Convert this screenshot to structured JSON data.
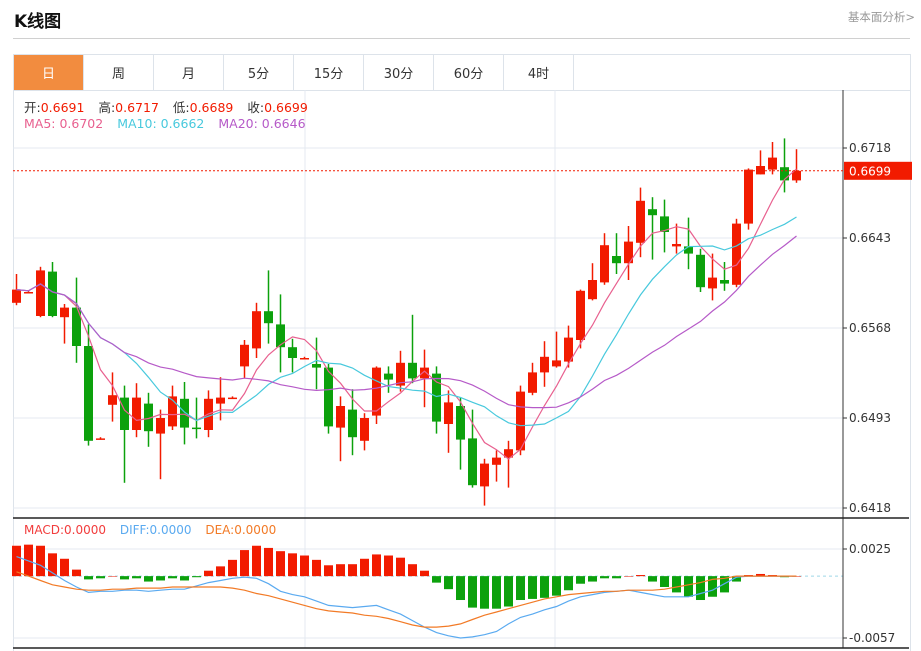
{
  "header": {
    "title": "K线图",
    "more_link": "基本面分析>"
  },
  "tabs": [
    {
      "label": "日",
      "active": true
    },
    {
      "label": "周",
      "active": false
    },
    {
      "label": "月",
      "active": false
    },
    {
      "label": "5分",
      "active": false
    },
    {
      "label": "15分",
      "active": false
    },
    {
      "label": "30分",
      "active": false
    },
    {
      "label": "60分",
      "active": false
    },
    {
      "label": "4时",
      "active": false
    }
  ],
  "info": {
    "open_label": "开:",
    "open": "0.6691",
    "high_label": "高:",
    "high": "0.6717",
    "low_label": "低:",
    "low": "0.6689",
    "close_label": "收:",
    "close": "0.6699",
    "ma5": "MA5: 0.6702",
    "ma10": "MA10: 0.6662",
    "ma20": "MA20: 0.6646"
  },
  "macd_info": {
    "macd": "MACD:0.0000",
    "diff": "DIFF:0.0000",
    "dea": "DEA:0.0000"
  },
  "colors": {
    "up": "#f21b00",
    "down": "#0ca10c",
    "ma5": "#e8608f",
    "ma10": "#48c9dd",
    "ma20": "#b65ac8",
    "diff": "#5aaaf0",
    "dea": "#f27a26",
    "accent": "#f28c3f"
  },
  "chart_data": [
    {
      "type": "candlestick",
      "y_ticks": [
        "0.6718",
        "0.6643",
        "0.6568",
        "0.6493",
        "0.6418"
      ],
      "ylim": [
        0.6418,
        0.6718
      ],
      "current_price": "0.6699",
      "grid": true,
      "moving_averages": [
        5,
        10,
        20
      ],
      "ohlc": [
        [
          0.6589,
          0.6613,
          0.6587,
          0.66
        ],
        [
          0.6598,
          0.6599,
          0.6597,
          0.6598
        ],
        [
          0.6578,
          0.6619,
          0.6577,
          0.6616
        ],
        [
          0.6615,
          0.6623,
          0.6577,
          0.6578
        ],
        [
          0.6577,
          0.6588,
          0.6555,
          0.6585
        ],
        [
          0.6585,
          0.661,
          0.6539,
          0.6553
        ],
        [
          0.6553,
          0.6571,
          0.647,
          0.6474
        ],
        [
          0.6476,
          0.6477,
          0.6475,
          0.6476
        ],
        [
          0.6504,
          0.6531,
          0.649,
          0.6512
        ],
        [
          0.651,
          0.652,
          0.6439,
          0.6483
        ],
        [
          0.6483,
          0.6522,
          0.6477,
          0.651
        ],
        [
          0.6505,
          0.6514,
          0.6469,
          0.6482
        ],
        [
          0.648,
          0.65,
          0.6442,
          0.6493
        ],
        [
          0.6486,
          0.652,
          0.6483,
          0.6511
        ],
        [
          0.6509,
          0.6523,
          0.6471,
          0.6485
        ],
        [
          0.6485,
          0.651,
          0.6476,
          0.6484
        ],
        [
          0.6483,
          0.6516,
          0.6477,
          0.6509
        ],
        [
          0.6505,
          0.6527,
          0.6491,
          0.651
        ],
        [
          0.651,
          0.6511,
          0.6509,
          0.651
        ],
        [
          0.6536,
          0.6558,
          0.6526,
          0.6554
        ],
        [
          0.6551,
          0.6589,
          0.6543,
          0.6582
        ],
        [
          0.6582,
          0.6616,
          0.6555,
          0.6572
        ],
        [
          0.6571,
          0.6596,
          0.6531,
          0.6552
        ],
        [
          0.6552,
          0.6559,
          0.6531,
          0.6543
        ],
        [
          0.6543,
          0.6544,
          0.6542,
          0.6543
        ],
        [
          0.6538,
          0.656,
          0.6517,
          0.6535
        ],
        [
          0.6535,
          0.6538,
          0.648,
          0.6486
        ],
        [
          0.6485,
          0.6511,
          0.6457,
          0.6503
        ],
        [
          0.65,
          0.6517,
          0.6462,
          0.6477
        ],
        [
          0.6474,
          0.6497,
          0.6466,
          0.6493
        ],
        [
          0.6495,
          0.6536,
          0.6488,
          0.6535
        ],
        [
          0.653,
          0.6536,
          0.6514,
          0.6525
        ],
        [
          0.652,
          0.6549,
          0.6515,
          0.6539
        ],
        [
          0.6539,
          0.6579,
          0.6522,
          0.6526
        ],
        [
          0.6526,
          0.655,
          0.6502,
          0.6535
        ],
        [
          0.653,
          0.6536,
          0.648,
          0.649
        ],
        [
          0.6488,
          0.6516,
          0.6464,
          0.6506
        ],
        [
          0.6503,
          0.651,
          0.645,
          0.6475
        ],
        [
          0.6476,
          0.65,
          0.6435,
          0.6437
        ],
        [
          0.6436,
          0.6459,
          0.642,
          0.6455
        ],
        [
          0.6454,
          0.6466,
          0.644,
          0.646
        ],
        [
          0.646,
          0.6474,
          0.6435,
          0.6467
        ],
        [
          0.6466,
          0.652,
          0.6462,
          0.6515
        ],
        [
          0.6514,
          0.6539,
          0.6512,
          0.6531
        ],
        [
          0.6531,
          0.6557,
          0.6519,
          0.6544
        ],
        [
          0.6536,
          0.6565,
          0.6535,
          0.6541
        ],
        [
          0.654,
          0.657,
          0.6535,
          0.656
        ],
        [
          0.6558,
          0.66,
          0.6551,
          0.6599
        ],
        [
          0.6592,
          0.6622,
          0.6591,
          0.6608
        ],
        [
          0.6606,
          0.6647,
          0.6604,
          0.6637
        ],
        [
          0.6628,
          0.6647,
          0.6613,
          0.6622
        ],
        [
          0.6622,
          0.6653,
          0.6608,
          0.664
        ],
        [
          0.6639,
          0.6685,
          0.6627,
          0.6674
        ],
        [
          0.6667,
          0.6677,
          0.6625,
          0.6662
        ],
        [
          0.6661,
          0.6675,
          0.6631,
          0.6648
        ],
        [
          0.6636,
          0.6655,
          0.663,
          0.6638
        ],
        [
          0.6636,
          0.666,
          0.6617,
          0.663
        ],
        [
          0.6629,
          0.6634,
          0.6598,
          0.6602
        ],
        [
          0.6601,
          0.663,
          0.6591,
          0.661
        ],
        [
          0.6608,
          0.6623,
          0.6599,
          0.6605
        ],
        [
          0.6604,
          0.6659,
          0.6602,
          0.6655
        ],
        [
          0.6655,
          0.6701,
          0.665,
          0.67
        ],
        [
          0.6696,
          0.6716,
          0.6696,
          0.6703
        ],
        [
          0.67,
          0.6723,
          0.6696,
          0.671
        ],
        [
          0.6702,
          0.6726,
          0.6681,
          0.6691
        ],
        [
          0.6691,
          0.6717,
          0.6689,
          0.6699
        ]
      ]
    },
    {
      "type": "bar+line",
      "y_ticks": [
        "0.0025",
        "-0.0057"
      ],
      "ylim": [
        -0.0057,
        0.0025
      ],
      "macd": [
        0.0028,
        0.0029,
        0.0028,
        0.0021,
        0.0016,
        0.0006,
        -0.0003,
        -0.0002,
        0.0,
        -0.0003,
        -0.0002,
        -0.0005,
        -0.0004,
        -0.0002,
        -0.0004,
        -0.0001,
        0.0005,
        0.0009,
        0.0015,
        0.0024,
        0.0028,
        0.0026,
        0.0023,
        0.0021,
        0.0019,
        0.0015,
        0.001,
        0.0011,
        0.0011,
        0.0016,
        0.002,
        0.0019,
        0.0017,
        0.0011,
        0.0005,
        -0.0006,
        -0.0012,
        -0.0022,
        -0.0029,
        -0.003,
        -0.003,
        -0.0028,
        -0.0022,
        -0.0021,
        -0.002,
        -0.0018,
        -0.0013,
        -0.0007,
        -0.0005,
        -0.0002,
        -0.0002,
        0.0,
        0.0001,
        -0.0005,
        -0.001,
        -0.0015,
        -0.0019,
        -0.0022,
        -0.0019,
        -0.0015,
        -0.0005,
        0.0001,
        0.0002,
        0.0001,
        -0.0001,
        0.0
      ],
      "diff": [
        0.0018,
        0.0014,
        0.001,
        0.0003,
        -0.0004,
        -0.001,
        -0.0015,
        -0.0014,
        -0.0014,
        -0.0013,
        -0.0013,
        -0.0014,
        -0.0013,
        -0.0012,
        -0.0012,
        -0.0009,
        -0.0006,
        -0.0004,
        -0.0002,
        -0.0001,
        -0.0002,
        -0.0007,
        -0.0014,
        -0.0017,
        -0.0019,
        -0.0023,
        -0.0027,
        -0.0028,
        -0.0029,
        -0.0028,
        -0.0027,
        -0.0031,
        -0.0035,
        -0.0041,
        -0.0047,
        -0.0052,
        -0.0055,
        -0.0057,
        -0.0056,
        -0.0054,
        -0.0051,
        -0.0044,
        -0.0038,
        -0.0035,
        -0.0031,
        -0.0028,
        -0.0023,
        -0.0019,
        -0.0017,
        -0.0015,
        -0.0014,
        -0.0013,
        -0.0015,
        -0.0017,
        -0.0019,
        -0.0019,
        -0.0019,
        -0.0016,
        -0.0013,
        -0.0007,
        -0.0001,
        0.0,
        0.0,
        0.0,
        0.0,
        0.0
      ],
      "dea": [
        0.0004,
        0.0,
        -0.0004,
        -0.0008,
        -0.001,
        -0.0012,
        -0.0013,
        -0.0013,
        -0.0012,
        -0.0012,
        -0.0011,
        -0.0011,
        -0.0011,
        -0.001,
        -0.001,
        -0.001,
        -0.001,
        -0.001,
        -0.0011,
        -0.0013,
        -0.0016,
        -0.0018,
        -0.0021,
        -0.0024,
        -0.0027,
        -0.003,
        -0.0032,
        -0.0033,
        -0.0034,
        -0.0036,
        -0.0037,
        -0.0039,
        -0.0042,
        -0.0045,
        -0.0047,
        -0.0047,
        -0.0046,
        -0.0044,
        -0.004,
        -0.0036,
        -0.0033,
        -0.003,
        -0.0027,
        -0.0024,
        -0.0021,
        -0.0019,
        -0.0017,
        -0.0016,
        -0.0015,
        -0.0014,
        -0.0014,
        -0.0013,
        -0.0013,
        -0.0013,
        -0.0012,
        -0.001,
        -0.0008,
        -0.0006,
        -0.0003,
        -0.0002,
        0.0,
        0.0,
        0.0,
        0.0,
        0.0,
        0.0
      ]
    }
  ]
}
